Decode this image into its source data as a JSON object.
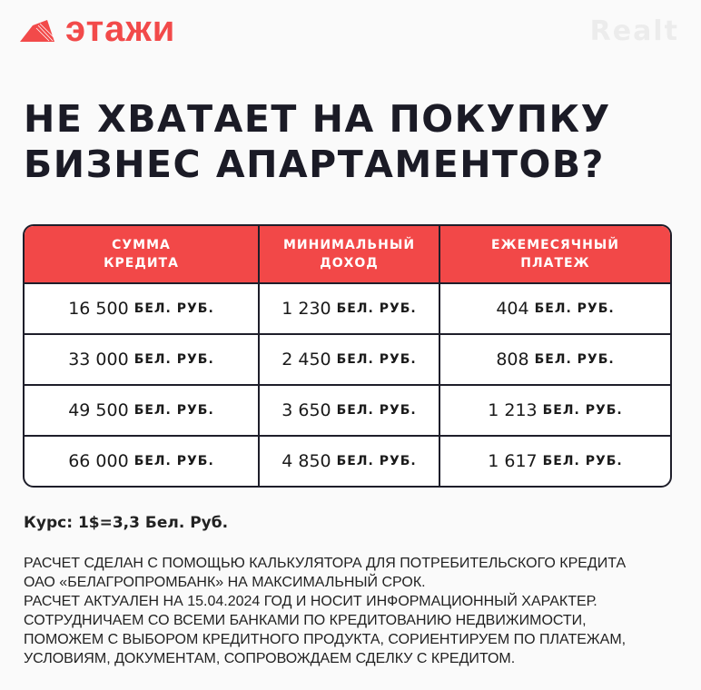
{
  "brand": {
    "name": "этажи",
    "accent": "#f24848"
  },
  "title": {
    "line1": "НЕ ХВАТАЕТ НА ПОКУПКУ",
    "line2": "БИЗНЕС АПАРТАМЕНТОВ?"
  },
  "table": {
    "headers": [
      {
        "line1": "СУММА",
        "line2": "КРЕДИТА"
      },
      {
        "line1": "МИНИМАЛЬНЫЙ",
        "line2": "ДОХОД"
      },
      {
        "line1": "ЕЖЕМЕСЯЧНЫЙ",
        "line2": "ПЛАТЕЖ"
      }
    ],
    "unit": "БЕЛ. РУБ.",
    "rows": [
      [
        "16 500",
        "1 230",
        "404"
      ],
      [
        "33 000",
        "2 450",
        "808"
      ],
      [
        "49 500",
        "3 650",
        "1 213"
      ],
      [
        "66 000",
        "4 850",
        "1 617"
      ]
    ]
  },
  "rate": "Курс: 1$=3,3 Бел. Руб.",
  "notes": [
    "РАСЧЕТ СДЕЛАН С ПОМОЩЬЮ КАЛЬКУЛЯТОРА ДЛЯ ПОТРЕБИТЕЛЬСКОГО КРЕДИТА",
    "ОАО «БЕЛАГРОПРОМБАНК» НА МАКСИМАЛЬНЫЙ СРОК.",
    "РАСЧЕТ АКТУАЛЕН НА 15.04.2024 ГОД И НОСИТ ИНФОРМАЦИОННЫЙ ХАРАКТЕР.",
    "СОТРУДНИЧАЕМ СО ВСЕМИ БАНКАМИ ПО КРЕДИТОВАНИЮ НЕДВИЖИМОСТИ,",
    "ПОМОЖЕМ С ВЫБОРОМ КРЕДИТНОГО ПРОДУКТА, СОРИЕНТИРУЕМ ПО ПЛАТЕЖАМ,",
    "УСЛОВИЯМ, ДОКУМЕНТАМ, СОПРОВОЖДАЕМ СДЕЛКУ С КРЕДИТОМ."
  ],
  "watermark": "Realt"
}
